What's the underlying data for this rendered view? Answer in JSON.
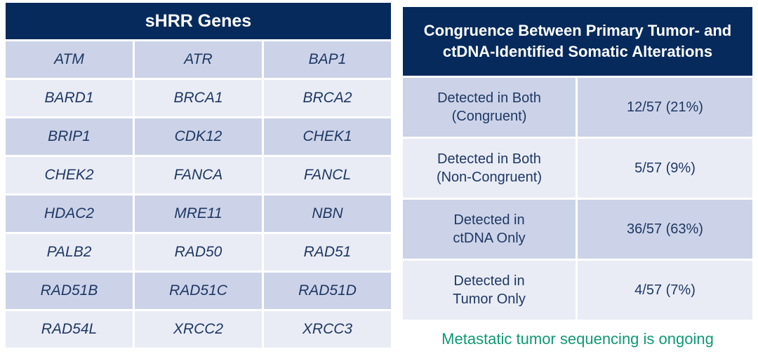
{
  "colors": {
    "header_navy": "#062a5c",
    "row_dark": "#ccd3e8",
    "row_light": "#e9ecf5",
    "text_navy": "#1f3864",
    "footnote_green": "#0f9973"
  },
  "shrr_table": {
    "title": "sHRR Genes",
    "rows": [
      [
        "ATM",
        "ATR",
        "BAP1"
      ],
      [
        "BARD1",
        "BRCA1",
        "BRCA2"
      ],
      [
        "BRIP1",
        "CDK12",
        "CHEK1"
      ],
      [
        "CHEK2",
        "FANCA",
        "FANCL"
      ],
      [
        "HDAC2",
        "MRE11",
        "NBN"
      ],
      [
        "PALB2",
        "RAD50",
        "RAD51"
      ],
      [
        "RAD51B",
        "RAD51C",
        "RAD51D"
      ],
      [
        "RAD54L",
        "XRCC2",
        "XRCC3"
      ]
    ]
  },
  "congruence_table": {
    "title": "Congruence Between Primary Tumor- and\nctDNA-Identified Somatic Alterations",
    "rows": [
      {
        "label": "Detected in Both\n(Congruent)",
        "value": "12/57 (21%)"
      },
      {
        "label": "Detected in Both\n(Non-Congruent)",
        "value": "5/57 (9%)"
      },
      {
        "label": "Detected in\nctDNA Only",
        "value": "36/57 (63%)"
      },
      {
        "label": "Detected in\nTumor Only",
        "value": "4/57 (7%)"
      }
    ]
  },
  "footnote": "Metastatic tumor sequencing is ongoing"
}
